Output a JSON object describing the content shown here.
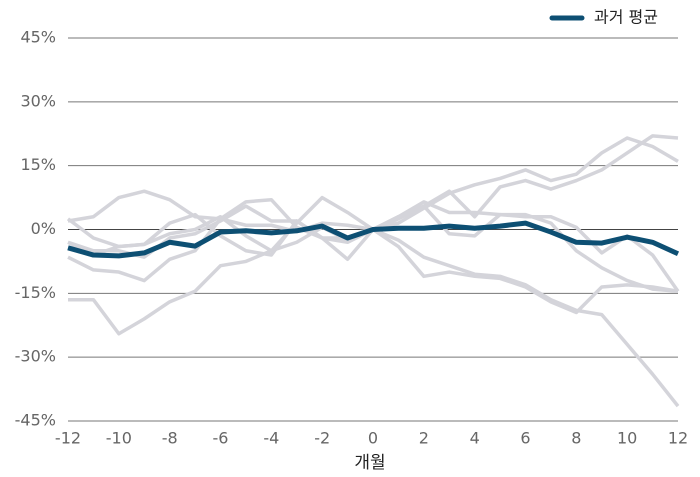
{
  "chart_data": {
    "type": "line",
    "x_label": "개월",
    "x": [
      -12,
      -11,
      -10,
      -9,
      -8,
      -7,
      -6,
      -5,
      -4,
      -3,
      -2,
      -1,
      0,
      1,
      2,
      3,
      4,
      5,
      6,
      7,
      8,
      9,
      10,
      11,
      12
    ],
    "xlim": [
      -12,
      12
    ],
    "xticks": [
      -12,
      -10,
      -8,
      -6,
      -4,
      -2,
      0,
      2,
      4,
      6,
      8,
      10,
      12
    ],
    "ylim": [
      -45,
      45
    ],
    "yticks": [
      {
        "value": -45,
        "label": "-45%"
      },
      {
        "value": -30,
        "label": "-30%"
      },
      {
        "value": -15,
        "label": "-15%"
      },
      {
        "value": 0,
        "label": "0%"
      },
      {
        "value": 15,
        "label": "15%"
      },
      {
        "value": 30,
        "label": "30%"
      },
      {
        "value": 45,
        "label": "45%"
      }
    ],
    "grid": true,
    "legend": "top-right",
    "series": [
      {
        "color": "#d4d4da",
        "values": [
          -16.5,
          -16.5,
          -24.5,
          -21,
          -17,
          -14.5,
          -8.5,
          -7.5,
          -5,
          -3,
          0.5,
          -2.5,
          0,
          -2.5,
          -6.5,
          -8.5,
          -10.5,
          -11,
          -13,
          -16.5,
          -19,
          -20,
          -27,
          -34,
          -41.5
        ]
      },
      {
        "color": "#d4d4da",
        "values": [
          -6.5,
          -9.5,
          -10,
          -12,
          -7,
          -5,
          2.5,
          1,
          1,
          -0.5,
          1.5,
          1,
          0,
          2.5,
          5.5,
          9,
          3,
          10,
          11.5,
          9.5,
          11.5,
          14,
          18,
          22,
          21.5
        ]
      },
      {
        "color": "#d4d4da",
        "values": [
          2,
          3,
          7.5,
          9,
          7,
          3,
          2.5,
          6.5,
          7,
          0.5,
          -2,
          -2,
          0,
          1.5,
          5,
          8.5,
          10.5,
          12,
          14,
          11.5,
          13,
          18,
          21.5,
          19.5,
          16
        ]
      },
      {
        "color": "#d4d4da",
        "values": [
          -3,
          -6,
          -4,
          -3.5,
          -1,
          0,
          3,
          -1.5,
          -5,
          1.5,
          7.5,
          4,
          0,
          -4,
          -11,
          -10,
          -11,
          -11.5,
          -13.5,
          -17,
          -19.5,
          -13.5,
          -13,
          -13.5,
          -14.5
        ]
      },
      {
        "color": "#d4d4da",
        "values": [
          2.5,
          -2,
          -4,
          -3.5,
          1.5,
          3.5,
          -1.5,
          -5,
          -6,
          2,
          -2,
          -7,
          0,
          3,
          5.5,
          -1,
          -1.5,
          3.5,
          3,
          3,
          0.5,
          -5.5,
          -1.5,
          -6,
          -14.5
        ]
      },
      {
        "color": "#d4d4da",
        "values": [
          -3,
          -5,
          -5,
          -6.5,
          -2,
          -1,
          2,
          5.5,
          2,
          2,
          -2,
          -3,
          0,
          3,
          6.5,
          4,
          4,
          3.5,
          3.5,
          1.5,
          -5,
          -9,
          -12,
          -14,
          -14.5
        ]
      },
      {
        "name": "과거 평균",
        "color": "#0d4f73",
        "values": [
          -4.3,
          -6,
          -6.2,
          -5.5,
          -3,
          -3.9,
          -0.6,
          -0.3,
          -0.8,
          -0.3,
          0.8,
          -2,
          0,
          0.3,
          0.3,
          0.8,
          0.3,
          0.8,
          1.5,
          -0.6,
          -3,
          -3.2,
          -1.8,
          -3,
          -5.7
        ]
      }
    ]
  }
}
